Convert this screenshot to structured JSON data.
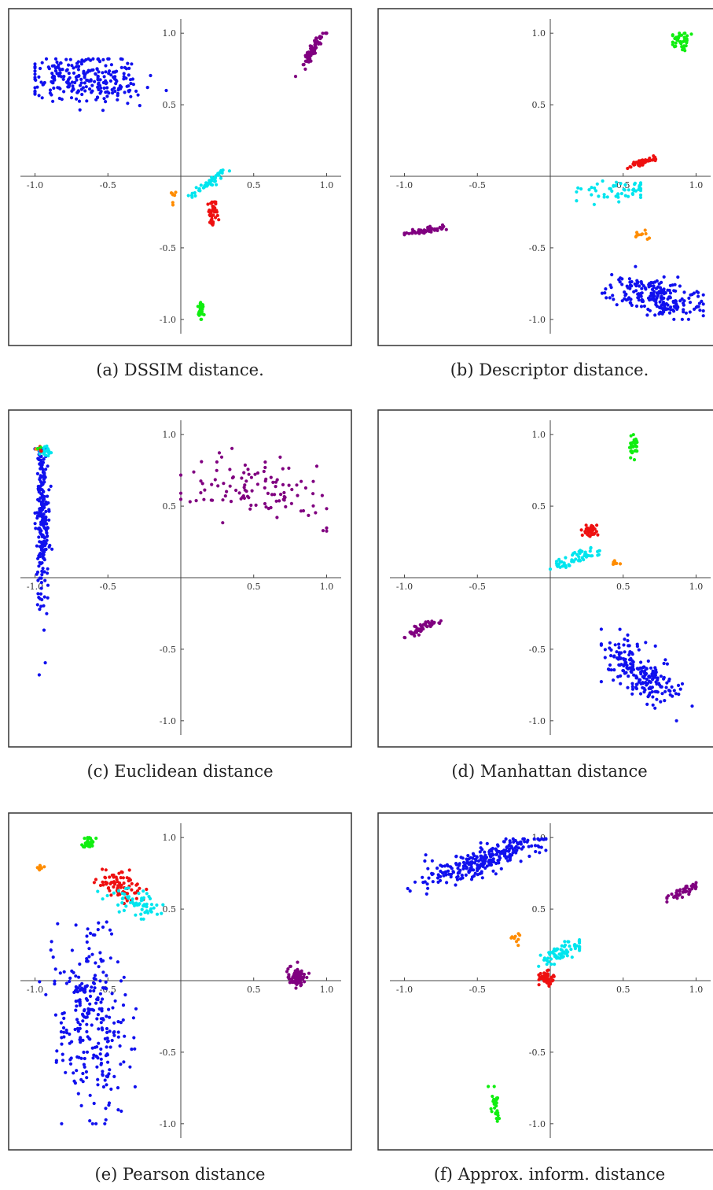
{
  "chart_data": [
    {
      "type": "scatter",
      "caption": "(a) DSSIM distance.",
      "xlim": [
        -1.1,
        1.1
      ],
      "ylim": [
        -1.1,
        1.1
      ],
      "xticks": [
        -1.0,
        -0.5,
        0.5,
        1.0
      ],
      "yticks": [
        -1.0,
        -0.5,
        0.5,
        1.0
      ],
      "tick_labels": {
        "-1.0": "-1.0",
        "-0.5": "-0.5",
        "0.5": "0.5",
        "1.0": "1.0"
      },
      "clusters": [
        {
          "color": "#1010ee",
          "count": 260,
          "cx": -0.65,
          "cy": 0.68,
          "sx": 0.2,
          "sy": 0.08,
          "angle": 0,
          "min": [
            -1.0,
            0.2
          ],
          "max": [
            -0.1,
            0.82
          ]
        },
        {
          "color": "#800080",
          "count": 70,
          "cx": 0.9,
          "cy": 0.88,
          "sx": 0.08,
          "sy": 0.015,
          "angle": 60,
          "min": [
            0.72,
            0.65
          ],
          "max": [
            1.0,
            1.0
          ]
        },
        {
          "color": "#00e5ee",
          "count": 50,
          "cx": 0.2,
          "cy": -0.04,
          "sx": 0.08,
          "sy": 0.012,
          "angle": 38,
          "min": [
            0.05,
            -0.2
          ],
          "max": [
            0.34,
            0.07
          ]
        },
        {
          "color": "#ee1010",
          "count": 45,
          "cx": 0.22,
          "cy": -0.25,
          "sx": 0.015,
          "sy": 0.045,
          "angle": 0,
          "min": [
            0.17,
            -0.34
          ],
          "max": [
            0.26,
            -0.18
          ]
        },
        {
          "color": "#ff8c00",
          "count": 7,
          "cx": -0.05,
          "cy": -0.13,
          "sx": 0.01,
          "sy": 0.03,
          "angle": 0,
          "min": [
            -0.08,
            -0.2
          ],
          "max": [
            -0.03,
            -0.08
          ]
        },
        {
          "color": "#10ee10",
          "count": 30,
          "cx": 0.14,
          "cy": -0.93,
          "sx": 0.01,
          "sy": 0.04,
          "angle": 0,
          "min": [
            0.11,
            -1.0
          ],
          "max": [
            0.17,
            -0.8
          ]
        }
      ]
    },
    {
      "type": "scatter",
      "caption": "(b) Descriptor distance.",
      "xlim": [
        -1.1,
        1.1
      ],
      "ylim": [
        -1.1,
        1.1
      ],
      "xticks": [
        -1.0,
        -0.5,
        0.5,
        1.0
      ],
      "yticks": [
        -1.0,
        -0.5,
        0.5,
        1.0
      ],
      "tick_labels": {
        "-1.0": "-1.0",
        "-0.5": "-0.5",
        "0.5": "0.5",
        "1.0": "1.0"
      },
      "clusters": [
        {
          "color": "#10ee10",
          "count": 40,
          "cx": 0.9,
          "cy": 0.95,
          "sx": 0.03,
          "sy": 0.03,
          "angle": 0,
          "min": [
            0.84,
            0.84
          ],
          "max": [
            0.97,
            1.0
          ]
        },
        {
          "color": "#ee1010",
          "count": 50,
          "cx": 0.63,
          "cy": 0.1,
          "sx": 0.05,
          "sy": 0.012,
          "angle": 20,
          "min": [
            0.45,
            0.03
          ],
          "max": [
            0.74,
            0.15
          ]
        },
        {
          "color": "#00e5ee",
          "count": 55,
          "cx": 0.45,
          "cy": -0.1,
          "sx": 0.14,
          "sy": 0.03,
          "angle": 5,
          "min": [
            0.18,
            -0.2
          ],
          "max": [
            0.62,
            -0.03
          ]
        },
        {
          "color": "#ff8c00",
          "count": 10,
          "cx": 0.62,
          "cy": -0.41,
          "sx": 0.03,
          "sy": 0.02,
          "angle": 0,
          "min": [
            0.56,
            -0.45
          ],
          "max": [
            0.68,
            -0.37
          ]
        },
        {
          "color": "#800080",
          "count": 60,
          "cx": -0.85,
          "cy": -0.38,
          "sx": 0.08,
          "sy": 0.01,
          "angle": 8,
          "min": [
            -1.0,
            -0.42
          ],
          "max": [
            -0.68,
            -0.33
          ]
        },
        {
          "color": "#1010ee",
          "count": 220,
          "cx": 0.72,
          "cy": -0.84,
          "sx": 0.16,
          "sy": 0.06,
          "angle": -12,
          "min": [
            0.32,
            -1.0
          ],
          "max": [
            1.05,
            -0.58
          ]
        }
      ]
    },
    {
      "type": "scatter",
      "caption": "(c) Euclidean distance",
      "xlim": [
        -1.1,
        1.1
      ],
      "ylim": [
        -1.1,
        1.1
      ],
      "xticks": [
        -1.0,
        -0.5,
        0.5,
        1.0
      ],
      "yticks": [
        -1.0,
        -0.5,
        0.5,
        1.0
      ],
      "tick_labels": {
        "-1.0": "-1.0",
        "-0.5": "-0.5",
        "0.5": "0.5",
        "1.0": "1.0"
      },
      "clusters": [
        {
          "color": "#1010ee",
          "count": 260,
          "cx": -0.95,
          "cy": 0.45,
          "sx": 0.02,
          "sy": 0.32,
          "angle": 0,
          "min": [
            -1.0,
            -1.0
          ],
          "max": [
            -0.86,
            0.9
          ]
        },
        {
          "color": "#00e5ee",
          "count": 25,
          "cx": -0.92,
          "cy": 0.88,
          "sx": 0.02,
          "sy": 0.02,
          "angle": 0,
          "min": [
            -0.98,
            0.82
          ],
          "max": [
            -0.85,
            0.98
          ]
        },
        {
          "color": "#ee1010",
          "count": 4,
          "cx": -0.96,
          "cy": 0.9,
          "sx": 0.01,
          "sy": 0.01,
          "angle": 0,
          "min": [
            -1.0,
            0.87
          ],
          "max": [
            -0.93,
            0.92
          ]
        },
        {
          "color": "#ff8c00",
          "count": 2,
          "cx": -0.99,
          "cy": 0.9,
          "sx": 0.005,
          "sy": 0.005,
          "angle": 0,
          "min": [
            -1.0,
            0.88
          ],
          "max": [
            -0.97,
            0.92
          ]
        },
        {
          "color": "#10ee10",
          "count": 2,
          "cx": -0.97,
          "cy": 0.91,
          "sx": 0.005,
          "sy": 0.005,
          "angle": 0,
          "min": [
            -0.99,
            0.89
          ],
          "max": [
            -0.95,
            0.93
          ]
        },
        {
          "color": "#800080",
          "count": 110,
          "cx": 0.5,
          "cy": 0.6,
          "sx": 0.25,
          "sy": 0.12,
          "angle": -12,
          "min": [
            0.0,
            0.3
          ],
          "max": [
            1.0,
            0.97
          ]
        }
      ]
    },
    {
      "type": "scatter",
      "caption": "(d) Manhattan distance",
      "xlim": [
        -1.1,
        1.1
      ],
      "ylim": [
        -1.1,
        1.1
      ],
      "xticks": [
        -1.0,
        -0.5,
        0.5,
        1.0
      ],
      "yticks": [
        -1.0,
        -0.5,
        0.5,
        1.0
      ],
      "tick_labels": {
        "-1.0": "-1.0",
        "-0.5": "-0.5",
        "0.5": "0.5",
        "1.0": "1.0"
      },
      "clusters": [
        {
          "color": "#10ee10",
          "count": 30,
          "cx": 0.57,
          "cy": 0.92,
          "sx": 0.015,
          "sy": 0.04,
          "angle": 0,
          "min": [
            0.52,
            0.82
          ],
          "max": [
            0.63,
            1.0
          ]
        },
        {
          "color": "#ee1010",
          "count": 40,
          "cx": 0.27,
          "cy": 0.33,
          "sx": 0.025,
          "sy": 0.02,
          "angle": 0,
          "min": [
            0.2,
            0.28
          ],
          "max": [
            0.33,
            0.38
          ]
        },
        {
          "color": "#00e5ee",
          "count": 55,
          "cx": 0.18,
          "cy": 0.14,
          "sx": 0.1,
          "sy": 0.02,
          "angle": 20,
          "min": [
            0.0,
            0.06
          ],
          "max": [
            0.36,
            0.24
          ]
        },
        {
          "color": "#ff8c00",
          "count": 8,
          "cx": 0.44,
          "cy": 0.1,
          "sx": 0.02,
          "sy": 0.01,
          "angle": 0,
          "min": [
            0.4,
            0.07
          ],
          "max": [
            0.48,
            0.2
          ]
        },
        {
          "color": "#800080",
          "count": 50,
          "cx": -0.88,
          "cy": -0.35,
          "sx": 0.07,
          "sy": 0.015,
          "angle": 25,
          "min": [
            -1.0,
            -0.42
          ],
          "max": [
            -0.75,
            -0.27
          ]
        },
        {
          "color": "#1010ee",
          "count": 210,
          "cx": 0.62,
          "cy": -0.66,
          "sx": 0.17,
          "sy": 0.07,
          "angle": -40,
          "min": [
            0.35,
            -1.0
          ],
          "max": [
            1.02,
            -0.36
          ]
        }
      ]
    },
    {
      "type": "scatter",
      "caption": "(e) Pearson distance",
      "xlim": [
        -1.1,
        1.1
      ],
      "ylim": [
        -1.1,
        1.1
      ],
      "xticks": [
        -1.0,
        -0.5,
        0.5,
        1.0
      ],
      "yticks": [
        -1.0,
        -0.5,
        0.5,
        1.0
      ],
      "tick_labels": {
        "-1.0": "-1.0",
        "-0.5": "-0.5",
        "0.5": "0.5",
        "1.0": "1.0"
      },
      "clusters": [
        {
          "color": "#10ee10",
          "count": 35,
          "cx": -0.63,
          "cy": 0.96,
          "sx": 0.02,
          "sy": 0.02,
          "angle": 0,
          "min": [
            -0.68,
            0.9
          ],
          "max": [
            -0.58,
            1.0
          ]
        },
        {
          "color": "#ff8c00",
          "count": 8,
          "cx": -0.97,
          "cy": 0.79,
          "sx": 0.02,
          "sy": 0.01,
          "angle": 0,
          "min": [
            -1.0,
            0.76
          ],
          "max": [
            -0.88,
            0.82
          ]
        },
        {
          "color": "#ee1010",
          "count": 80,
          "cx": -0.42,
          "cy": 0.66,
          "sx": 0.08,
          "sy": 0.05,
          "angle": -30,
          "min": [
            -0.6,
            0.5
          ],
          "max": [
            -0.2,
            0.83
          ]
        },
        {
          "color": "#00e5ee",
          "count": 60,
          "cx": -0.3,
          "cy": 0.55,
          "sx": 0.1,
          "sy": 0.04,
          "angle": -20,
          "min": [
            -0.65,
            0.43
          ],
          "max": [
            0.12,
            0.7
          ]
        },
        {
          "color": "#1010ee",
          "count": 280,
          "cx": -0.6,
          "cy": -0.3,
          "sx": 0.13,
          "sy": 0.3,
          "angle": 0,
          "min": [
            -1.0,
            -1.0
          ],
          "max": [
            -0.05,
            0.45
          ]
        },
        {
          "color": "#800080",
          "count": 90,
          "cx": 0.8,
          "cy": 0.02,
          "sx": 0.03,
          "sy": 0.03,
          "angle": 0,
          "min": [
            0.68,
            -0.08
          ],
          "max": [
            1.0,
            0.25
          ]
        }
      ]
    },
    {
      "type": "scatter",
      "caption": "(f) Approx. inform. distance",
      "xlim": [
        -1.1,
        1.1
      ],
      "ylim": [
        -1.1,
        1.1
      ],
      "xticks": [
        -1.0,
        -0.5,
        0.5,
        1.0
      ],
      "yticks": [
        -1.0,
        -0.5,
        0.5,
        1.0
      ],
      "tick_labels": {
        "-1.0": "-1.0",
        "-0.5": "-0.5",
        "0.5": "0.5",
        "1.0": "1.0"
      },
      "clusters": [
        {
          "color": "#1010ee",
          "count": 280,
          "cx": -0.42,
          "cy": 0.86,
          "sx": 0.22,
          "sy": 0.05,
          "angle": 22,
          "min": [
            -1.0,
            0.3
          ],
          "max": [
            -0.03,
            0.99
          ]
        },
        {
          "color": "#800080",
          "count": 55,
          "cx": 0.92,
          "cy": 0.63,
          "sx": 0.06,
          "sy": 0.015,
          "angle": 28,
          "min": [
            0.8,
            0.55
          ],
          "max": [
            1.0,
            0.7
          ]
        },
        {
          "color": "#ff8c00",
          "count": 9,
          "cx": -0.24,
          "cy": 0.32,
          "sx": 0.02,
          "sy": 0.04,
          "angle": 0,
          "min": [
            -0.28,
            0.13
          ],
          "max": [
            -0.18,
            0.42
          ]
        },
        {
          "color": "#00e5ee",
          "count": 70,
          "cx": 0.08,
          "cy": 0.2,
          "sx": 0.08,
          "sy": 0.03,
          "angle": 25,
          "min": [
            -0.08,
            0.1
          ],
          "max": [
            0.2,
            0.33
          ]
        },
        {
          "color": "#ee1010",
          "count": 45,
          "cx": -0.02,
          "cy": 0.02,
          "sx": 0.025,
          "sy": 0.025,
          "angle": 0,
          "min": [
            -0.1,
            -0.04
          ],
          "max": [
            0.04,
            0.1
          ]
        },
        {
          "color": "#10ee10",
          "count": 30,
          "cx": -0.38,
          "cy": -0.87,
          "sx": 0.015,
          "sy": 0.06,
          "angle": 10,
          "min": [
            -0.44,
            -1.0
          ],
          "max": [
            -0.3,
            -0.74
          ]
        }
      ]
    }
  ]
}
